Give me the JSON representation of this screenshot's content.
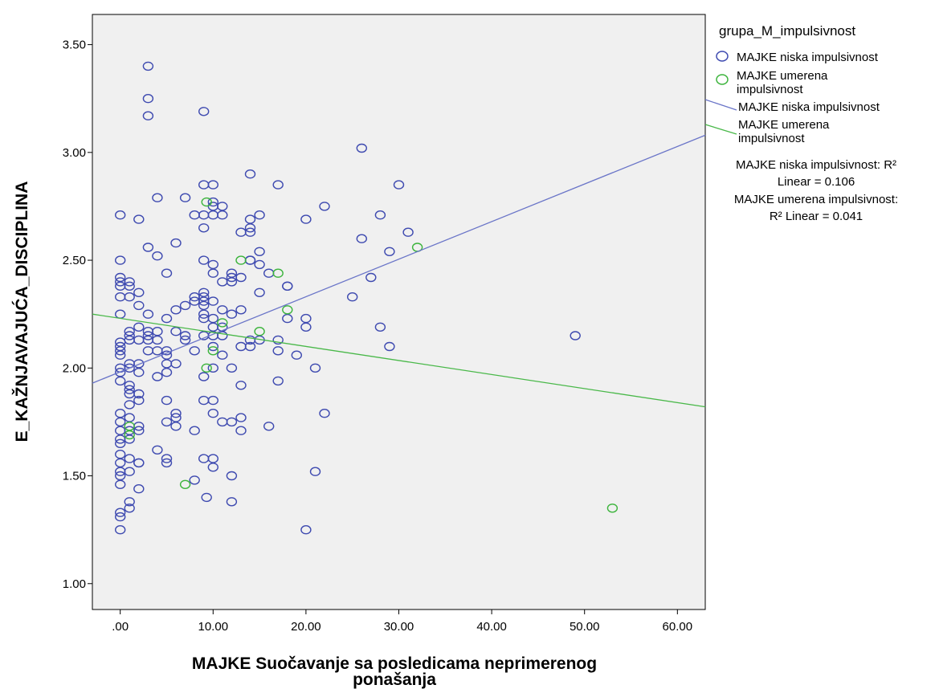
{
  "chart_data": {
    "type": "scatter",
    "xlabel": [
      "MAJKE Suočavanje sa posledicama neprimerenog",
      "ponašanja"
    ],
    "ylabel": "E_KAŽNJAVAJUĆA_DISCIPLINA",
    "xlim": [
      -3,
      63
    ],
    "ylim": [
      0.88,
      3.64
    ],
    "x_ticks": [
      0,
      10,
      20,
      30,
      40,
      50,
      60
    ],
    "x_tick_labels": [
      ".00",
      "10.00",
      "20.00",
      "30.00",
      "40.00",
      "50.00",
      "60.00"
    ],
    "y_ticks": [
      1.0,
      1.5,
      2.0,
      2.5,
      3.0,
      3.5
    ],
    "y_tick_labels": [
      "1.00",
      "1.50",
      "2.00",
      "2.50",
      "3.00",
      "3.50"
    ],
    "legend": {
      "title": "grupa_M_impulsivnost",
      "placement": "right",
      "marker_entries": [
        {
          "lines": [
            "MAJKE niska impulsivnost"
          ],
          "color": "#3e4ab0"
        },
        {
          "lines": [
            "MAJKE umerena",
            "impulsivnost"
          ],
          "color": "#3cb43c"
        }
      ],
      "line_entries": [
        {
          "lines": [
            "MAJKE niska impulsivnost"
          ],
          "color": "#6a75c8"
        },
        {
          "lines": [
            "MAJKE umerena",
            "impulsivnost"
          ],
          "color": "#49b849"
        }
      ],
      "r2_notes": [
        {
          "lines": [
            "MAJKE niska impulsivnost: R²",
            "Linear = 0.106"
          ]
        },
        {
          "lines": [
            "MAJKE umerena impulsivnost:",
            "R² Linear = 0.041"
          ]
        }
      ]
    },
    "grid": false,
    "colors": {
      "plot_bg": "#f0f0f0",
      "niska": "#3e4ab0",
      "umerena": "#3cb43c",
      "niska_line": "#6a75c8",
      "umerena_line": "#49b849"
    },
    "series": [
      {
        "name": "MAJKE niska impulsivnost",
        "color": "#3e4ab0",
        "fit": {
          "x0": -3,
          "y0": 1.93,
          "x1": 63,
          "y1": 3.08
        },
        "points": [
          [
            0,
            1.25
          ],
          [
            0,
            1.31
          ],
          [
            0,
            1.33
          ],
          [
            0,
            1.46
          ],
          [
            0,
            1.5
          ],
          [
            0,
            1.52
          ],
          [
            0,
            1.56
          ],
          [
            0,
            1.6
          ],
          [
            0,
            1.65
          ],
          [
            0,
            1.67
          ],
          [
            0,
            1.71
          ],
          [
            0,
            1.75
          ],
          [
            0,
            1.79
          ],
          [
            0,
            1.94
          ],
          [
            0,
            1.98
          ],
          [
            0,
            2.0
          ],
          [
            0,
            2.06
          ],
          [
            0,
            2.08
          ],
          [
            0,
            2.1
          ],
          [
            0,
            2.12
          ],
          [
            0,
            2.25
          ],
          [
            0,
            2.33
          ],
          [
            0,
            2.38
          ],
          [
            0,
            2.4
          ],
          [
            0,
            2.42
          ],
          [
            0,
            2.5
          ],
          [
            0,
            2.71
          ],
          [
            1,
            1.35
          ],
          [
            1,
            1.38
          ],
          [
            1,
            1.52
          ],
          [
            1,
            1.58
          ],
          [
            1,
            1.67
          ],
          [
            1,
            1.71
          ],
          [
            1,
            1.77
          ],
          [
            1,
            1.83
          ],
          [
            1,
            1.88
          ],
          [
            1,
            1.9
          ],
          [
            1,
            1.92
          ],
          [
            1,
            2.0
          ],
          [
            1,
            2.02
          ],
          [
            1,
            2.13
          ],
          [
            1,
            2.15
          ],
          [
            1,
            2.17
          ],
          [
            1,
            2.33
          ],
          [
            1,
            2.38
          ],
          [
            1,
            2.4
          ],
          [
            2,
            1.44
          ],
          [
            2,
            1.56
          ],
          [
            2,
            1.56
          ],
          [
            2,
            1.71
          ],
          [
            2,
            1.73
          ],
          [
            2,
            1.85
          ],
          [
            2,
            1.88
          ],
          [
            2,
            1.98
          ],
          [
            2,
            2.02
          ],
          [
            2,
            2.13
          ],
          [
            2,
            2.19
          ],
          [
            2,
            2.29
          ],
          [
            2,
            2.35
          ],
          [
            2,
            2.69
          ],
          [
            3,
            2.08
          ],
          [
            3,
            2.13
          ],
          [
            3,
            2.15
          ],
          [
            3,
            2.17
          ],
          [
            3,
            2.25
          ],
          [
            3,
            2.56
          ],
          [
            3,
            3.17
          ],
          [
            3,
            3.25
          ],
          [
            3,
            3.4
          ],
          [
            4,
            1.62
          ],
          [
            4,
            1.96
          ],
          [
            4,
            2.08
          ],
          [
            4,
            2.13
          ],
          [
            4,
            2.17
          ],
          [
            4,
            2.52
          ],
          [
            4,
            2.79
          ],
          [
            5,
            1.56
          ],
          [
            5,
            1.58
          ],
          [
            5,
            1.75
          ],
          [
            5,
            1.85
          ],
          [
            5,
            1.98
          ],
          [
            5,
            2.02
          ],
          [
            5,
            2.06
          ],
          [
            5,
            2.08
          ],
          [
            5,
            2.23
          ],
          [
            5,
            2.44
          ],
          [
            6,
            1.73
          ],
          [
            6,
            1.77
          ],
          [
            6,
            1.79
          ],
          [
            6,
            2.02
          ],
          [
            6,
            2.17
          ],
          [
            6,
            2.27
          ],
          [
            6,
            2.58
          ],
          [
            7,
            2.13
          ],
          [
            7,
            2.15
          ],
          [
            7,
            2.29
          ],
          [
            7,
            2.79
          ],
          [
            8,
            1.48
          ],
          [
            8,
            1.71
          ],
          [
            8,
            2.08
          ],
          [
            8,
            2.31
          ],
          [
            8,
            2.33
          ],
          [
            8,
            2.71
          ],
          [
            9,
            1.58
          ],
          [
            9,
            1.85
          ],
          [
            9,
            1.96
          ],
          [
            9,
            2.15
          ],
          [
            9,
            2.23
          ],
          [
            9,
            2.25
          ],
          [
            9,
            2.29
          ],
          [
            9,
            2.31
          ],
          [
            9,
            2.33
          ],
          [
            9,
            2.35
          ],
          [
            9,
            2.5
          ],
          [
            9,
            2.65
          ],
          [
            9,
            2.71
          ],
          [
            9,
            2.85
          ],
          [
            9,
            3.19
          ],
          [
            9.3,
            1.4
          ],
          [
            10,
            1.54
          ],
          [
            10,
            1.58
          ],
          [
            10,
            1.79
          ],
          [
            10,
            1.85
          ],
          [
            10,
            2.0
          ],
          [
            10,
            2.1
          ],
          [
            10,
            2.15
          ],
          [
            10,
            2.19
          ],
          [
            10,
            2.23
          ],
          [
            10,
            2.31
          ],
          [
            10,
            2.44
          ],
          [
            10,
            2.48
          ],
          [
            10,
            2.71
          ],
          [
            10,
            2.75
          ],
          [
            10,
            2.77
          ],
          [
            10,
            2.85
          ],
          [
            11,
            1.75
          ],
          [
            11,
            2.06
          ],
          [
            11,
            2.15
          ],
          [
            11,
            2.19
          ],
          [
            11,
            2.27
          ],
          [
            11,
            2.4
          ],
          [
            11,
            2.71
          ],
          [
            11,
            2.75
          ],
          [
            12,
            1.38
          ],
          [
            12,
            1.5
          ],
          [
            12,
            1.75
          ],
          [
            12,
            2.0
          ],
          [
            12,
            2.25
          ],
          [
            12,
            2.4
          ],
          [
            12,
            2.42
          ],
          [
            12,
            2.44
          ],
          [
            13,
            1.71
          ],
          [
            13,
            1.77
          ],
          [
            13,
            1.92
          ],
          [
            13,
            2.1
          ],
          [
            13,
            2.27
          ],
          [
            13,
            2.42
          ],
          [
            13,
            2.63
          ],
          [
            14,
            2.1
          ],
          [
            14,
            2.13
          ],
          [
            14,
            2.5
          ],
          [
            14,
            2.5
          ],
          [
            14,
            2.63
          ],
          [
            14,
            2.65
          ],
          [
            14,
            2.69
          ],
          [
            14,
            2.9
          ],
          [
            15,
            2.13
          ],
          [
            15,
            2.35
          ],
          [
            15,
            2.48
          ],
          [
            15,
            2.54
          ],
          [
            15,
            2.71
          ],
          [
            16,
            1.73
          ],
          [
            16,
            2.44
          ],
          [
            17,
            1.94
          ],
          [
            17,
            2.08
          ],
          [
            17,
            2.13
          ],
          [
            17,
            2.85
          ],
          [
            18,
            2.23
          ],
          [
            18,
            2.38
          ],
          [
            18,
            2.38
          ],
          [
            19,
            2.06
          ],
          [
            20,
            1.25
          ],
          [
            20,
            2.19
          ],
          [
            20,
            2.23
          ],
          [
            20,
            2.69
          ],
          [
            21,
            1.52
          ],
          [
            21,
            2.0
          ],
          [
            22,
            1.79
          ],
          [
            22,
            2.75
          ],
          [
            25,
            2.33
          ],
          [
            26,
            2.6
          ],
          [
            26,
            3.02
          ],
          [
            27,
            2.42
          ],
          [
            28,
            2.19
          ],
          [
            28,
            2.71
          ],
          [
            29,
            2.1
          ],
          [
            29,
            2.54
          ],
          [
            30,
            2.85
          ],
          [
            31,
            2.63
          ],
          [
            49,
            2.15
          ]
        ]
      },
      {
        "name": "MAJKE umerena impulsivnost",
        "color": "#3cb43c",
        "fit": {
          "x0": -3,
          "y0": 2.25,
          "x1": 63,
          "y1": 1.82
        },
        "points": [
          [
            1,
            1.69
          ],
          [
            1,
            1.73
          ],
          [
            7,
            1.46
          ],
          [
            9.3,
            2.0
          ],
          [
            9.3,
            2.77
          ],
          [
            10,
            2.08
          ],
          [
            11,
            2.21
          ],
          [
            13,
            2.5
          ],
          [
            15,
            2.17
          ],
          [
            17,
            2.44
          ],
          [
            18,
            2.27
          ],
          [
            32,
            2.56
          ],
          [
            53,
            1.35
          ]
        ]
      }
    ]
  }
}
